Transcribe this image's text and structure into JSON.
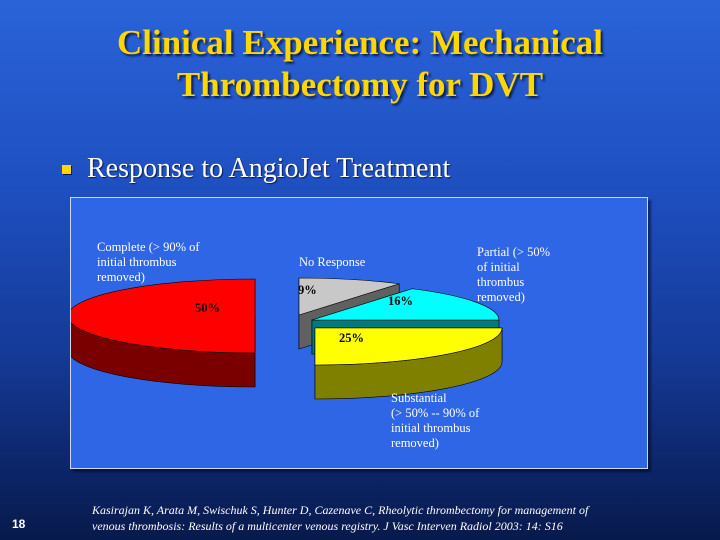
{
  "title": {
    "line1": "Clinical Experience: Mechanical",
    "line2": "Thrombectomy for DVT"
  },
  "bullet": {
    "text": "Response to AngioJet Treatment",
    "icon": "square-bullet-icon"
  },
  "chart_data": {
    "type": "pie",
    "style": "3d-exploded",
    "slices": [
      {
        "key": "complete",
        "label_lines": [
          "Complete (> 90% of",
          "initial thrombus",
          "removed)"
        ],
        "percent_label": "50%",
        "value": 50,
        "color": "#ff0000",
        "side_color": "#7a0000"
      },
      {
        "key": "no_response",
        "label_lines": [
          "No Response"
        ],
        "percent_label": "9%",
        "value": 9,
        "color": "#c8c8c8",
        "side_color": "#606060"
      },
      {
        "key": "partial",
        "label_lines": [
          "Partial  (> 50%",
          "of initial",
          "thrombus",
          "removed)"
        ],
        "percent_label": "16%",
        "value": 16,
        "color": "#00ffff",
        "side_color": "#007a7a"
      },
      {
        "key": "substantial",
        "label_lines": [
          "Substantial",
          "(> 50% -- 90% of",
          "initial thrombus",
          "removed)"
        ],
        "percent_label": "25%",
        "value": 25,
        "color": "#ffff00",
        "side_color": "#808000"
      }
    ]
  },
  "citation": {
    "line1": "Kasirajan K, Arata M, Swischuk S, Hunter D, Cazenave C, Rheolytic thrombectomy for management of",
    "line2": "venous thrombosis: Results of a multicenter venous registry. J Vasc Interven Radiol 2003: 14: S16"
  },
  "slide_number": "18"
}
